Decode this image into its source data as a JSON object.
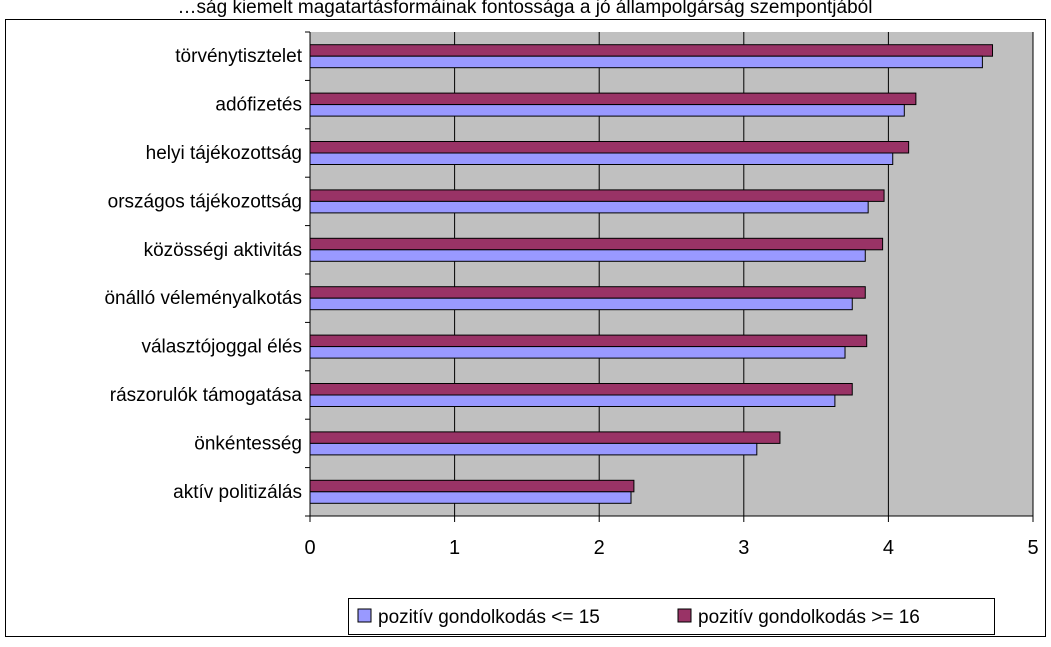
{
  "chart_data": {
    "type": "bar",
    "orientation": "horizontal",
    "title": "…ság kiemelt magatartásformáinak fontossága a jó állampolgárság szempontjából",
    "categories": [
      "törvénytisztelet",
      "adófizetés",
      "helyi tájékozottság",
      "országos tájékozottság",
      "közösségi aktivitás",
      "önálló véleményalkotás",
      "választójoggal élés",
      "rászorulók támogatása",
      "önkéntesség",
      "aktív politizálás"
    ],
    "series": [
      {
        "name": "pozitív gondolkodás <= 15",
        "color": "#9999ff",
        "values": [
          4.65,
          4.11,
          4.03,
          3.86,
          3.84,
          3.75,
          3.7,
          3.63,
          3.09,
          2.22
        ]
      },
      {
        "name": "pozitív gondolkodás >= 16",
        "color": "#993366",
        "values": [
          4.72,
          4.19,
          4.14,
          3.97,
          3.96,
          3.84,
          3.85,
          3.75,
          3.25,
          2.24
        ]
      }
    ],
    "xlim": [
      0,
      5
    ],
    "xticks": [
      "0",
      "1",
      "2",
      "3",
      "4",
      "5"
    ],
    "xlabel": "",
    "ylabel": "",
    "grid": "vertical major gridlines",
    "plot_background": "#c0c0c0",
    "legend_position": "bottom"
  }
}
